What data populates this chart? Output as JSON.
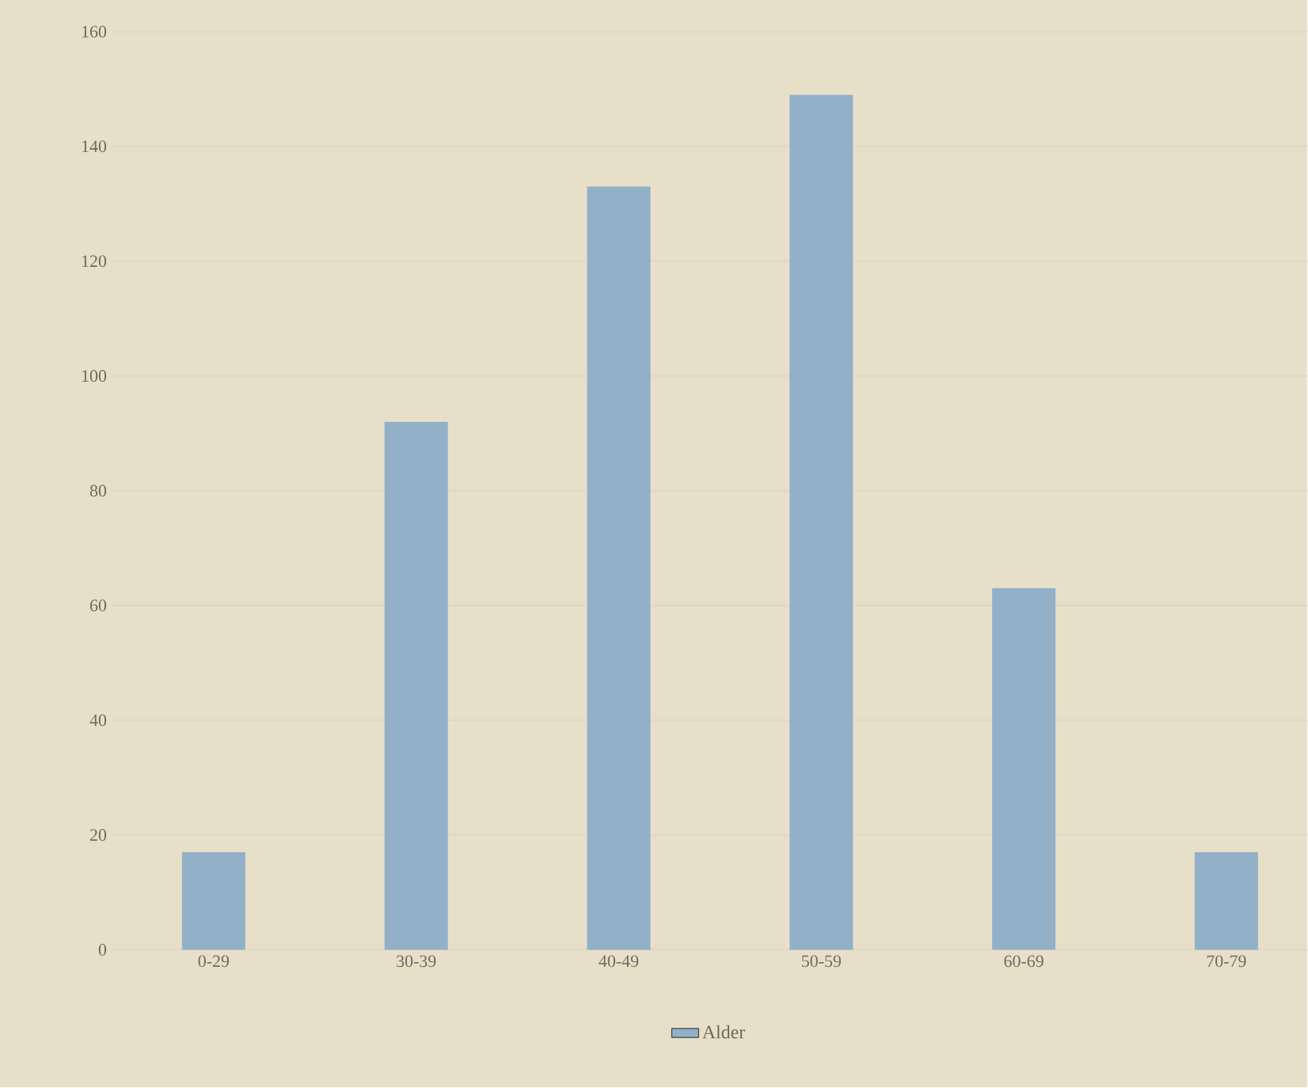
{
  "chart_data": {
    "type": "bar",
    "categories": [
      "0-29",
      "30-39",
      "40-49",
      "50-59",
      "60-69",
      "70-79"
    ],
    "series": [
      {
        "name": "Alder",
        "color": "#93b0c9",
        "values": [
          17,
          92,
          133,
          149,
          63,
          17
        ]
      }
    ],
    "ylim": [
      0,
      160
    ],
    "yticks": [
      0,
      20,
      40,
      60,
      80,
      100,
      120,
      140,
      160
    ],
    "grid": "y",
    "legend": "bottom"
  }
}
